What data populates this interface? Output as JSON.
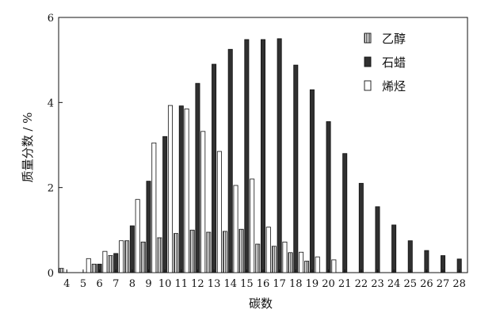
{
  "chart_data": {
    "type": "bar",
    "xlabel": "碳数",
    "ylabel": "质量分数 / %",
    "ylim": [
      0,
      6
    ],
    "yticks": [
      "0",
      "2",
      "4",
      "6"
    ],
    "categories": [
      "4",
      "5",
      "6",
      "7",
      "8",
      "9",
      "10",
      "11",
      "12",
      "13",
      "14",
      "15",
      "16",
      "17",
      "18",
      "19",
      "20",
      "21",
      "22",
      "23",
      "24",
      "25",
      "26",
      "27",
      "28"
    ],
    "series": [
      {
        "name": "乙醇",
        "style": "hatched",
        "values": [
          0.1,
          0.0,
          0.2,
          0.4,
          0.75,
          0.72,
          0.82,
          0.92,
          1.0,
          0.95,
          0.97,
          1.02,
          0.67,
          0.62,
          0.47,
          0.27,
          0.0,
          0.0,
          0.0,
          0.0,
          0.0,
          0.0,
          0.0,
          0.0,
          0.0
        ]
      },
      {
        "name": "石蜡",
        "style": "dark",
        "values": [
          0.0,
          0.0,
          0.2,
          0.45,
          1.1,
          2.15,
          3.2,
          3.92,
          4.45,
          4.9,
          5.25,
          5.48,
          5.48,
          5.5,
          4.88,
          4.3,
          3.55,
          2.8,
          2.1,
          1.55,
          1.12,
          0.75,
          0.52,
          0.4,
          0.32
        ]
      },
      {
        "name": "烯烃",
        "style": "white",
        "values": [
          0.0,
          0.33,
          0.5,
          0.75,
          1.72,
          3.05,
          3.93,
          3.85,
          3.32,
          2.85,
          2.05,
          2.2,
          1.07,
          0.72,
          0.48,
          0.37,
          0.3,
          0.0,
          0.0,
          0.0,
          0.0,
          0.0,
          0.0,
          0.0,
          0.0
        ]
      }
    ],
    "legend_position": "top-right",
    "colors": {
      "dark_fill": "#303030",
      "hatch_fill": "#9a9a9a",
      "white_fill": "#ffffff",
      "stroke": "#111111"
    }
  }
}
